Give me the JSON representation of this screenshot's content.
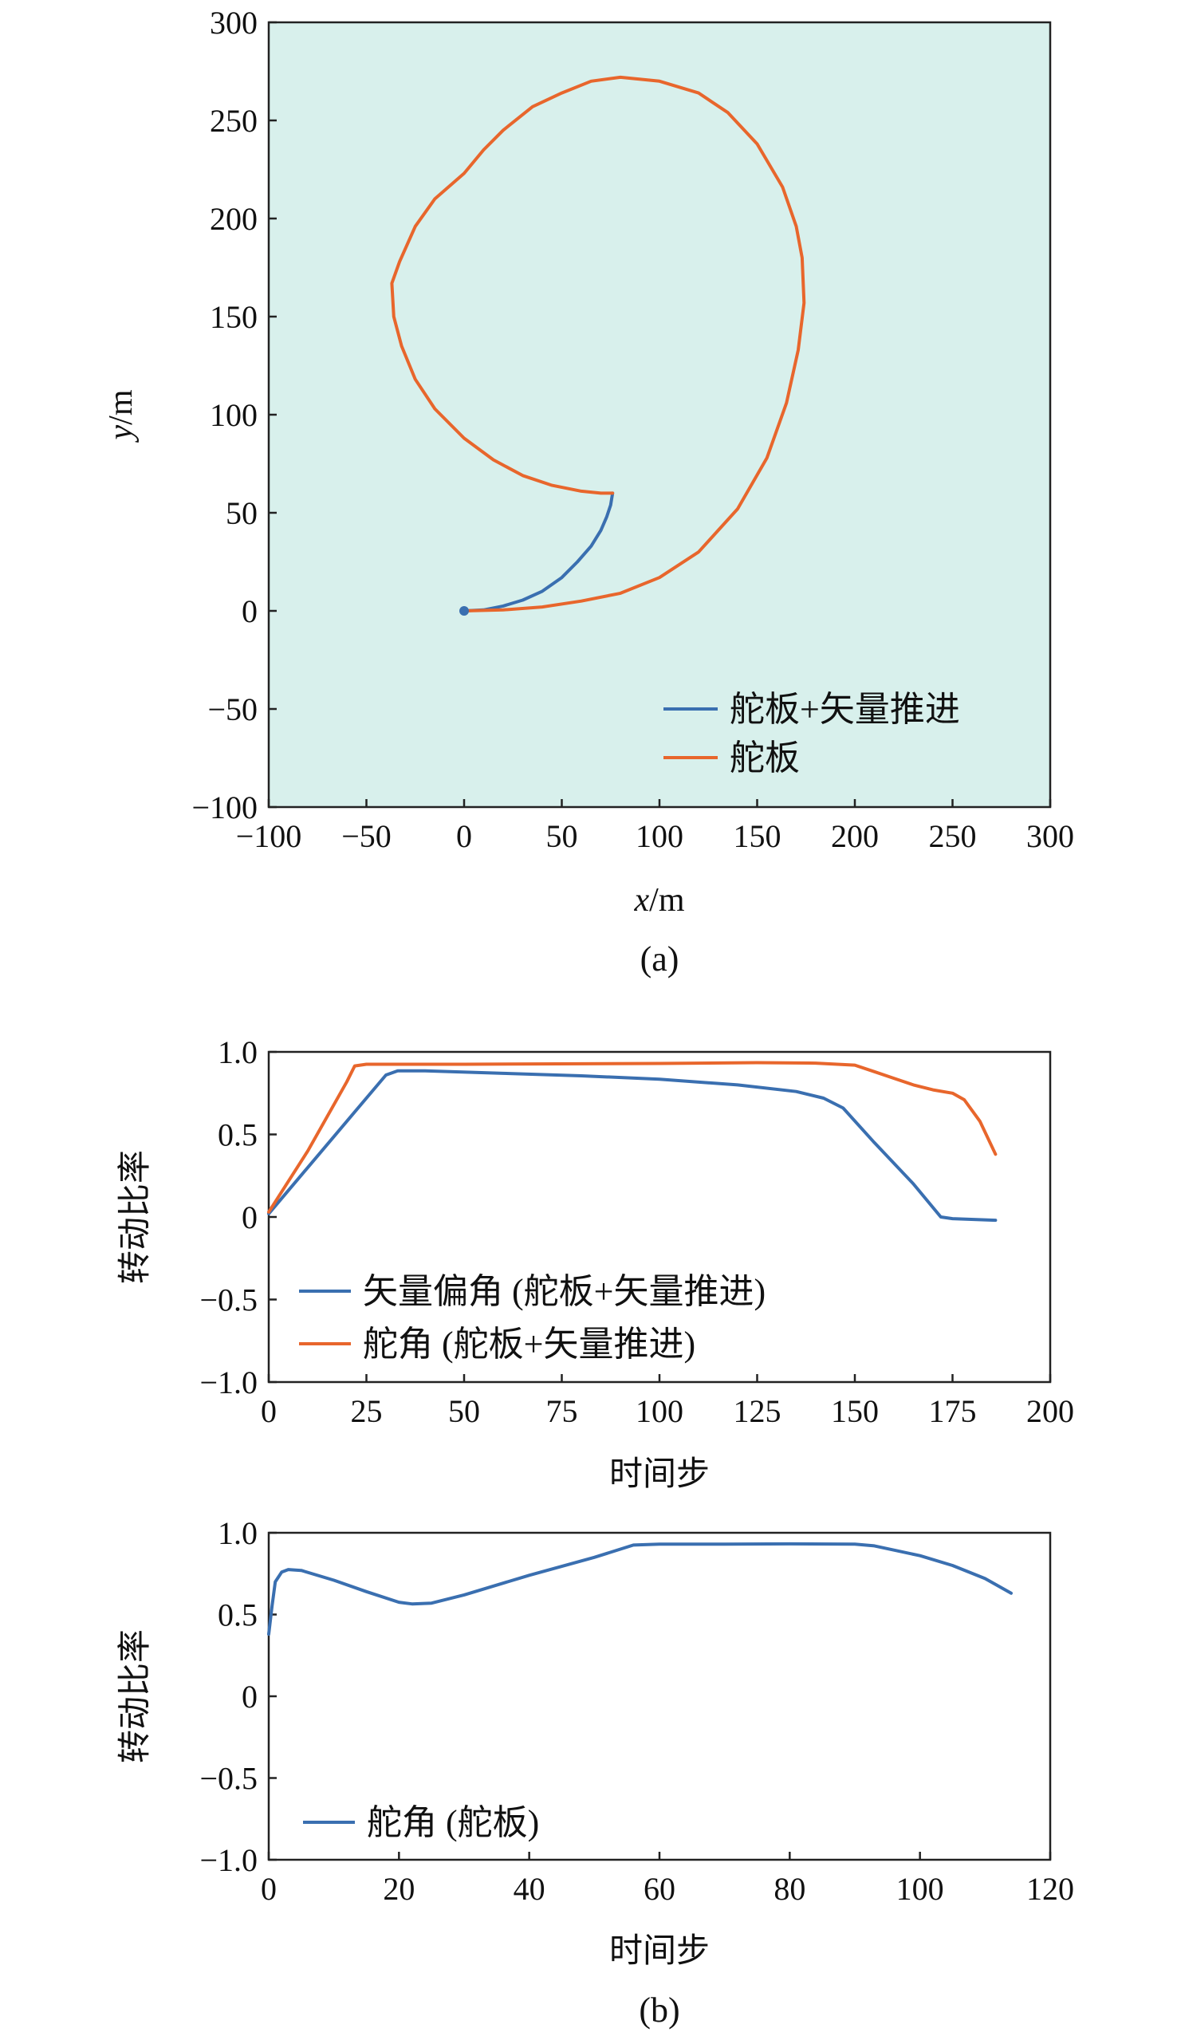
{
  "colors": {
    "blue": "#3a6fb0",
    "orange": "#e8662c",
    "plot_bg": "#d8f0ec"
  },
  "chart_data": [
    {
      "id": "a",
      "type": "line",
      "caption": "(a)",
      "x_label_var": "x",
      "x_label_unit": "/m",
      "y_label_var": "y",
      "y_label_unit": "/m",
      "xlim": [
        -100,
        300
      ],
      "ylim": [
        -100,
        300
      ],
      "xticks": [
        -100,
        -50,
        0,
        50,
        100,
        150,
        200,
        250,
        300
      ],
      "yticks": [
        -100,
        -50,
        0,
        50,
        100,
        150,
        200,
        250,
        300
      ],
      "xtick_labels": [
        "−100",
        "−50",
        "0",
        "50",
        "100",
        "150",
        "200",
        "250",
        "300"
      ],
      "ytick_labels": [
        "−100",
        "−50",
        "0",
        "50",
        "100",
        "150",
        "200",
        "250",
        "300"
      ],
      "background": "#d8f0ec",
      "legend_position": "bottom-right",
      "start_marker": [
        0,
        0
      ],
      "series": [
        {
          "name": "舵板+矢量推进",
          "color": "#3a6fb0",
          "points": [
            [
              0,
              0
            ],
            [
              10,
              0.5
            ],
            [
              20,
              2.5
            ],
            [
              30,
              5.5
            ],
            [
              40,
              10
            ],
            [
              50,
              17
            ],
            [
              58,
              25
            ],
            [
              65,
              33
            ],
            [
              70,
              41
            ],
            [
              73,
              48
            ],
            [
              75,
              54
            ],
            [
              76,
              60
            ]
          ]
        },
        {
          "name": "舵板",
          "color": "#e8662c",
          "points": [
            [
              0,
              0
            ],
            [
              20,
              0.5
            ],
            [
              40,
              2
            ],
            [
              60,
              5
            ],
            [
              80,
              9
            ],
            [
              100,
              17
            ],
            [
              120,
              30
            ],
            [
              140,
              52
            ],
            [
              155,
              78
            ],
            [
              165,
              106
            ],
            [
              171,
              133
            ],
            [
              174,
              157
            ],
            [
              173,
              180
            ],
            [
              170,
              196
            ],
            [
              163,
              216
            ],
            [
              150,
              238
            ],
            [
              135,
              254
            ],
            [
              120,
              264
            ],
            [
              100,
              270
            ],
            [
              80,
              272
            ],
            [
              65,
              270
            ],
            [
              50,
              264
            ],
            [
              35,
              257
            ],
            [
              20,
              245
            ],
            [
              10,
              235
            ],
            [
              0,
              223
            ],
            [
              -15,
              210
            ],
            [
              -25,
              196
            ],
            [
              -33,
              178
            ],
            [
              -37,
              167
            ],
            [
              -36,
              150
            ],
            [
              -32,
              135
            ],
            [
              -25,
              118
            ],
            [
              -15,
              103
            ],
            [
              0,
              88
            ],
            [
              15,
              77
            ],
            [
              30,
              69
            ],
            [
              45,
              64
            ],
            [
              60,
              61
            ],
            [
              70,
              60
            ],
            [
              76,
              60
            ]
          ]
        }
      ]
    },
    {
      "id": "b1",
      "type": "line",
      "xlabel": "时间步",
      "ylabel": "转动比率",
      "xlim": [
        0,
        200
      ],
      "ylim": [
        -1.0,
        1.0
      ],
      "xticks": [
        0,
        25,
        50,
        75,
        100,
        125,
        150,
        175,
        200
      ],
      "yticks": [
        -1.0,
        -0.5,
        0,
        0.5,
        1.0
      ],
      "xtick_labels": [
        "0",
        "25",
        "50",
        "75",
        "100",
        "125",
        "150",
        "175",
        "200"
      ],
      "ytick_labels": [
        "−1.0",
        "−0.5",
        "0",
        "0.5",
        "1.0"
      ],
      "legend_position": "bottom-left",
      "series": [
        {
          "name": "矢量偏角 (舵板+矢量推进)",
          "color": "#3a6fb0",
          "points": [
            [
              0,
              0.02
            ],
            [
              10,
              0.3
            ],
            [
              20,
              0.58
            ],
            [
              30,
              0.86
            ],
            [
              33,
              0.885
            ],
            [
              40,
              0.885
            ],
            [
              60,
              0.87
            ],
            [
              80,
              0.855
            ],
            [
              100,
              0.835
            ],
            [
              120,
              0.8
            ],
            [
              135,
              0.76
            ],
            [
              142,
              0.72
            ],
            [
              147,
              0.66
            ],
            [
              155,
              0.45
            ],
            [
              165,
              0.2
            ],
            [
              172,
              0.0
            ],
            [
              175,
              -0.01
            ],
            [
              186,
              -0.02
            ]
          ]
        },
        {
          "name": "舵角 (舵板+矢量推进)",
          "color": "#e8662c",
          "points": [
            [
              0,
              0.03
            ],
            [
              10,
              0.4
            ],
            [
              20,
              0.82
            ],
            [
              22,
              0.915
            ],
            [
              25,
              0.925
            ],
            [
              50,
              0.925
            ],
            [
              100,
              0.93
            ],
            [
              125,
              0.935
            ],
            [
              140,
              0.932
            ],
            [
              150,
              0.92
            ],
            [
              155,
              0.88
            ],
            [
              160,
              0.84
            ],
            [
              165,
              0.8
            ],
            [
              170,
              0.77
            ],
            [
              175,
              0.75
            ],
            [
              178,
              0.71
            ],
            [
              182,
              0.58
            ],
            [
              186,
              0.38
            ]
          ]
        }
      ]
    },
    {
      "id": "b2",
      "type": "line",
      "caption": "(b)",
      "xlabel": "时间步",
      "ylabel": "转动比率",
      "xlim": [
        0,
        120
      ],
      "ylim": [
        -1.0,
        1.0
      ],
      "xticks": [
        0,
        20,
        40,
        60,
        80,
        100,
        120
      ],
      "yticks": [
        -1.0,
        -0.5,
        0,
        0.5,
        1.0
      ],
      "xtick_labels": [
        "0",
        "20",
        "40",
        "60",
        "80",
        "100",
        "120"
      ],
      "ytick_labels": [
        "−1.0",
        "−0.5",
        "0",
        "0.5",
        "1.0"
      ],
      "legend_position": "bottom-left",
      "series": [
        {
          "name": "舵角 (舵板)",
          "color": "#3a6fb0",
          "points": [
            [
              0,
              0.38
            ],
            [
              0.5,
              0.55
            ],
            [
              1,
              0.7
            ],
            [
              2,
              0.76
            ],
            [
              3,
              0.775
            ],
            [
              5,
              0.77
            ],
            [
              10,
              0.71
            ],
            [
              15,
              0.64
            ],
            [
              20,
              0.575
            ],
            [
              22,
              0.565
            ],
            [
              25,
              0.57
            ],
            [
              30,
              0.62
            ],
            [
              40,
              0.74
            ],
            [
              50,
              0.85
            ],
            [
              56,
              0.925
            ],
            [
              60,
              0.93
            ],
            [
              70,
              0.93
            ],
            [
              80,
              0.932
            ],
            [
              90,
              0.93
            ],
            [
              93,
              0.92
            ],
            [
              100,
              0.86
            ],
            [
              105,
              0.8
            ],
            [
              110,
              0.72
            ],
            [
              114,
              0.63
            ]
          ]
        }
      ]
    }
  ]
}
